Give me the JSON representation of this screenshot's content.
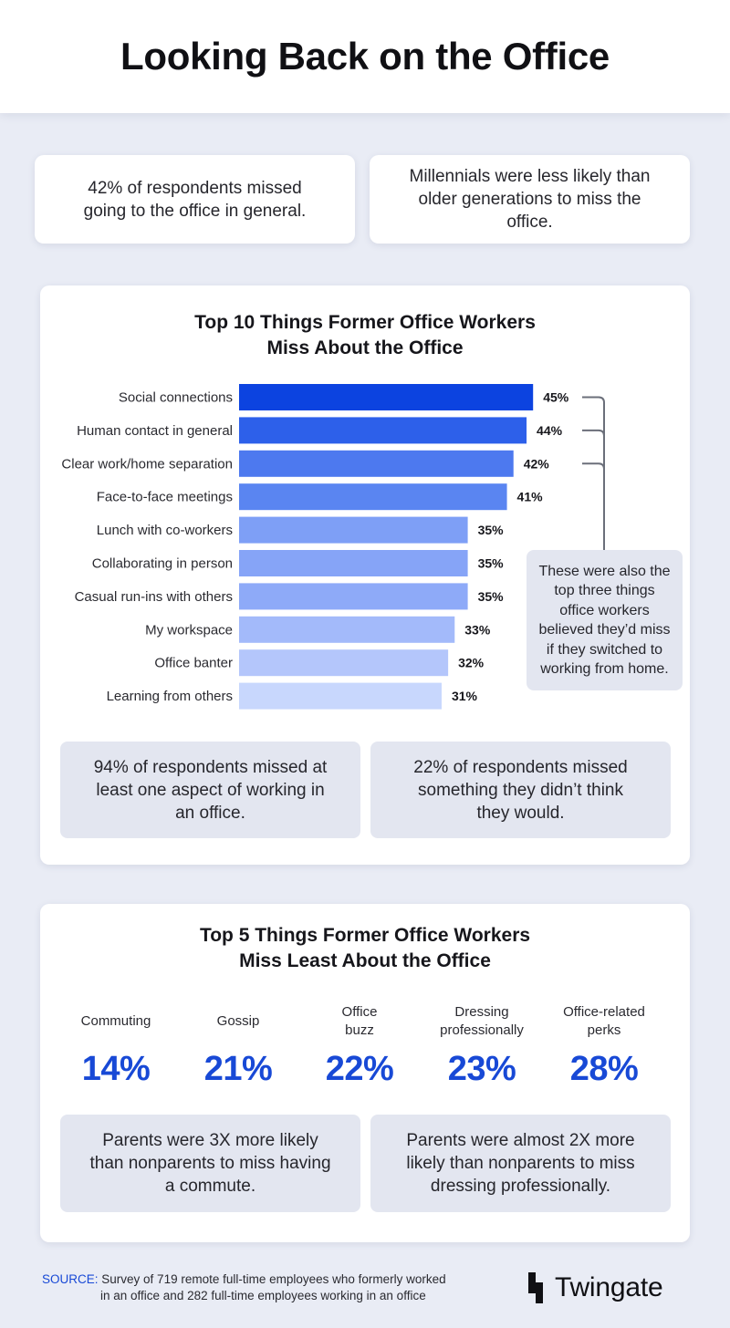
{
  "title": "Looking Back on the Office",
  "stats_top": [
    {
      "text": "42% of respondents missed\ngoing to the office in general."
    },
    {
      "text": "Millennials were less likely than\nolder generations to miss the office."
    }
  ],
  "colors": {
    "accent": "#1849d6",
    "bar_shades": [
      "#0c43e0",
      "#2d60ea",
      "#4d79ef",
      "#5a85f1",
      "#7e9ff6",
      "#86a4f7",
      "#8eaaf8",
      "#a3bafa",
      "#b4c6fb",
      "#c8d7fd"
    ]
  },
  "chart_data": {
    "type": "bar",
    "orientation": "horizontal",
    "title": "Top 10 Things Former Office Workers\nMiss About the Office",
    "categories": [
      "Social connections",
      "Human contact in general",
      "Clear work/home separation",
      "Face-to-face meetings",
      "Lunch with co-workers",
      "Collaborating in person",
      "Casual run-ins with others",
      "My workspace",
      "Office banter",
      "Learning from others"
    ],
    "values": [
      45,
      44,
      42,
      41,
      35,
      35,
      35,
      33,
      32,
      31
    ],
    "value_labels": [
      "45%",
      "44%",
      "42%",
      "41%",
      "35%",
      "35%",
      "35%",
      "33%",
      "32%",
      "31%"
    ],
    "unit": "%",
    "annotation": "These were also the\ntop three things\noffice workers\nbelieved they’d miss\nif they switched to\nworking from home.",
    "annotated_categories": [
      "Social connections",
      "Human contact in general",
      "Clear work/home separation"
    ]
  },
  "stats_middle": [
    {
      "text": "94% of respondents missed at\nleast one aspect of working in\nan office."
    },
    {
      "text": "22% of respondents missed\nsomething they didn’t think\nthey would."
    }
  ],
  "least": {
    "title": "Top 5 Things Former Office Workers\nMiss Least About the Office",
    "items": [
      {
        "label": "Commuting",
        "value": "14%"
      },
      {
        "label": "Gossip",
        "value": "21%"
      },
      {
        "label": "Office\nbuzz",
        "value": "22%"
      },
      {
        "label": "Dressing\nprofessionally",
        "value": "23%"
      },
      {
        "label": "Office-related\nperks",
        "value": "28%"
      }
    ]
  },
  "stats_bottom": [
    {
      "text": "Parents were 3X more likely\nthan nonparents to miss having\na commute."
    },
    {
      "text": "Parents were almost 2X more\nlikely than nonparents to miss\ndressing professionally."
    }
  ],
  "footer": {
    "source_key": "SOURCE:",
    "source_line1": "Survey of 719 remote full-time employees who formerly worked",
    "source_line2": "in an office and 282 full-time employees working in an office",
    "logo_icon": "twingate-logo-icon",
    "logo_text": "Twingate"
  }
}
